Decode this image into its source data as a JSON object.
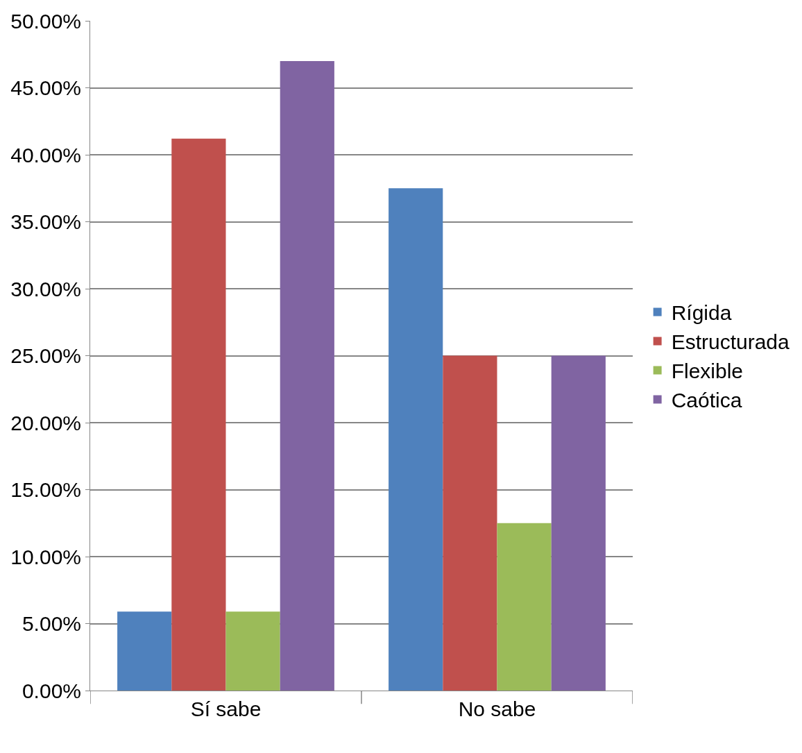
{
  "chart_data": {
    "type": "bar",
    "categories": [
      "Sí sabe",
      "No sabe"
    ],
    "series": [
      {
        "name": "Rígida",
        "color": "#4f81bd",
        "values": [
          5.9,
          37.5
        ]
      },
      {
        "name": "Estructurada",
        "color": "#c0504d",
        "values": [
          41.2,
          25.0
        ]
      },
      {
        "name": "Flexible",
        "color": "#9bbb59",
        "values": [
          5.9,
          12.5
        ]
      },
      {
        "name": "Caótica",
        "color": "#8064a2",
        "values": [
          47.0,
          25.0
        ]
      }
    ],
    "ylim": [
      0,
      50
    ],
    "yticks": [
      {
        "value": 0,
        "label": "0.00%"
      },
      {
        "value": 5,
        "label": "5.00%"
      },
      {
        "value": 10,
        "label": "10.00%"
      },
      {
        "value": 15,
        "label": "15.00%"
      },
      {
        "value": 20,
        "label": "20.00%"
      },
      {
        "value": 25,
        "label": "25.00%"
      },
      {
        "value": 30,
        "label": "30.00%"
      },
      {
        "value": 35,
        "label": "35.00%"
      },
      {
        "value": 40,
        "label": "40.00%"
      },
      {
        "value": 45,
        "label": "45.00%"
      },
      {
        "value": 50,
        "label": "50.00%"
      }
    ],
    "grid": "y",
    "legend": "right"
  }
}
